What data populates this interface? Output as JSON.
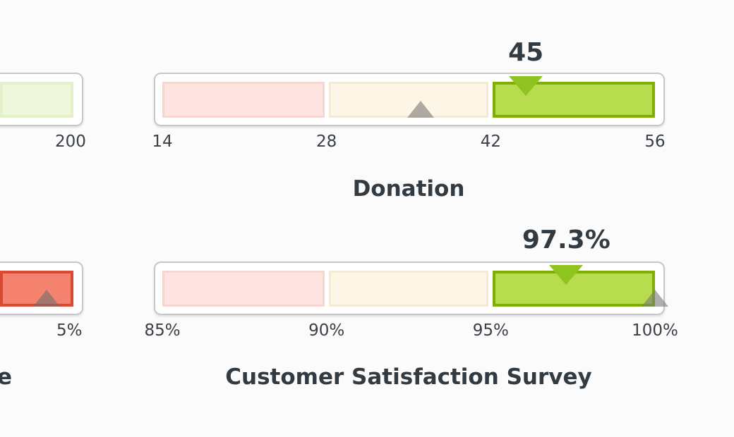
{
  "colors": {
    "band_low_fill": "#fde4e1",
    "band_low_border": "#f6d6d1",
    "band_mid_fill": "#fdf5e5",
    "band_mid_border": "#f3ead5",
    "band_high_fill": "#b7dd4f",
    "band_high_border": "#7fae07",
    "band_high_dim_fill": "#eef6dc",
    "band_high_dim_border": "#e4efcb",
    "band_bad_fill": "#f4826f",
    "band_bad_border": "#d94a33",
    "value_marker": "#8fc31f",
    "target_marker": "#8a8a8a",
    "text": "#323a42"
  },
  "chart_data": [
    {
      "type": "bullet",
      "title": "",
      "tick_labels": [
        "200"
      ],
      "bands": [
        "high_dim"
      ],
      "cropped": "left"
    },
    {
      "type": "bullet",
      "title": "Donation",
      "value": 45,
      "value_label": "45",
      "target": 36,
      "range": [
        14,
        56
      ],
      "ticks": [
        14,
        28,
        42,
        56
      ],
      "tick_labels": [
        "14",
        "28",
        "42",
        "56"
      ],
      "bands": [
        "low",
        "mid",
        "high"
      ],
      "active_band": 2
    },
    {
      "type": "bullet",
      "title": "e",
      "tick_labels": [
        "5%"
      ],
      "bands": [
        "bad"
      ],
      "cropped": "left"
    },
    {
      "type": "bullet",
      "title": "Customer Satisfaction Survey",
      "value": 97.3,
      "value_label": "97.3%",
      "target": 100,
      "range": [
        85,
        100
      ],
      "ticks": [
        85,
        90,
        95,
        100
      ],
      "tick_labels": [
        "85%",
        "90%",
        "95%",
        "100%"
      ],
      "bands": [
        "low",
        "mid",
        "high"
      ],
      "active_band": 2
    }
  ]
}
